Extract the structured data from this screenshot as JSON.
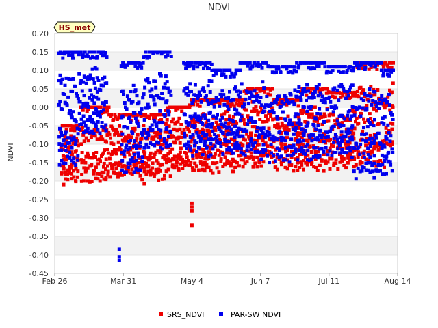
{
  "chart_data": {
    "type": "scatter",
    "title": "NDVI",
    "ylabel": "NDVI",
    "xlabel": "",
    "badge": "HS_met",
    "ylim": [
      -0.45,
      0.2
    ],
    "yticks": [
      0.2,
      0.15,
      0.1,
      0.05,
      0.0,
      -0.05,
      -0.1,
      -0.15,
      -0.2,
      -0.25,
      -0.3,
      -0.35,
      -0.4,
      -0.45
    ],
    "ytick_labels": [
      "0.20",
      "0.15",
      "0.10",
      "0.05",
      "0.00",
      "-0.05",
      "-0.10",
      "-0.15",
      "-0.20",
      "-0.25",
      "-0.30",
      "-0.35",
      "-0.40",
      "-0.45"
    ],
    "x_unit": "days since Feb 26",
    "xlim": [
      0,
      168
    ],
    "xticks": [
      0,
      34,
      68,
      102,
      136,
      170
    ],
    "xtick_labels": [
      "Feb 26",
      "Mar 31",
      "May 4",
      "Jun 7",
      "Jul 11",
      "Aug 14"
    ],
    "grid_bands": true,
    "legend_position": "bottom-center",
    "colors": {
      "SRS_NDVI": "#ee0000",
      "PAR-SW NDVI": "#0000ee",
      "band": "#f2f2f2",
      "axis": "#cccccc",
      "badge_bg": "#ffffc0"
    },
    "series": [
      {
        "name": "SRS_NDVI",
        "color": "#ee0000",
        "days": [
          [
            3,
            12
          ],
          [
            13,
            27
          ],
          [
            27,
            41
          ],
          [
            41,
            55
          ],
          [
            55,
            67
          ],
          [
            67,
            81
          ],
          [
            81,
            94
          ],
          [
            94,
            108
          ],
          [
            108,
            122
          ],
          [
            122,
            136
          ],
          [
            136,
            150
          ],
          [
            150,
            164
          ],
          [
            164,
            168
          ]
        ],
        "daily_min": [
          -0.22,
          -0.23,
          -0.21,
          -0.22,
          -0.2,
          -0.2,
          -0.19,
          -0.18,
          -0.19,
          -0.2,
          -0.19,
          -0.2,
          -0.15
        ],
        "daily_max": [
          -0.05,
          0.0,
          -0.02,
          -0.02,
          0.0,
          0.02,
          0.02,
          0.05,
          0.02,
          0.05,
          0.04,
          0.12,
          0.12
        ],
        "outliers": [
          {
            "x": 68,
            "y": -0.26
          },
          {
            "x": 68,
            "y": -0.27
          },
          {
            "x": 68,
            "y": -0.28
          },
          {
            "x": 68,
            "y": -0.32
          }
        ]
      },
      {
        "name": "PAR-SW NDVI",
        "color": "#0000ee",
        "days": [
          [
            2,
            12
          ],
          [
            12,
            26
          ],
          [
            33,
            44
          ],
          [
            44,
            58
          ],
          [
            64,
            78
          ],
          [
            78,
            92
          ],
          [
            92,
            106
          ],
          [
            106,
            120
          ],
          [
            120,
            134
          ],
          [
            134,
            148
          ],
          [
            148,
            162
          ],
          [
            162,
            168
          ]
        ],
        "daily_min": [
          -0.2,
          -0.1,
          -0.22,
          -0.15,
          -0.16,
          -0.15,
          -0.17,
          -0.18,
          -0.17,
          -0.16,
          -0.23,
          -0.22
        ],
        "daily_max": [
          0.15,
          0.15,
          0.12,
          0.15,
          0.12,
          0.1,
          0.12,
          0.11,
          0.12,
          0.11,
          0.12,
          0.1
        ],
        "outliers": [
          {
            "x": 32,
            "y": -0.385
          },
          {
            "x": 32,
            "y": -0.405
          },
          {
            "x": 32,
            "y": -0.415
          }
        ]
      }
    ]
  }
}
